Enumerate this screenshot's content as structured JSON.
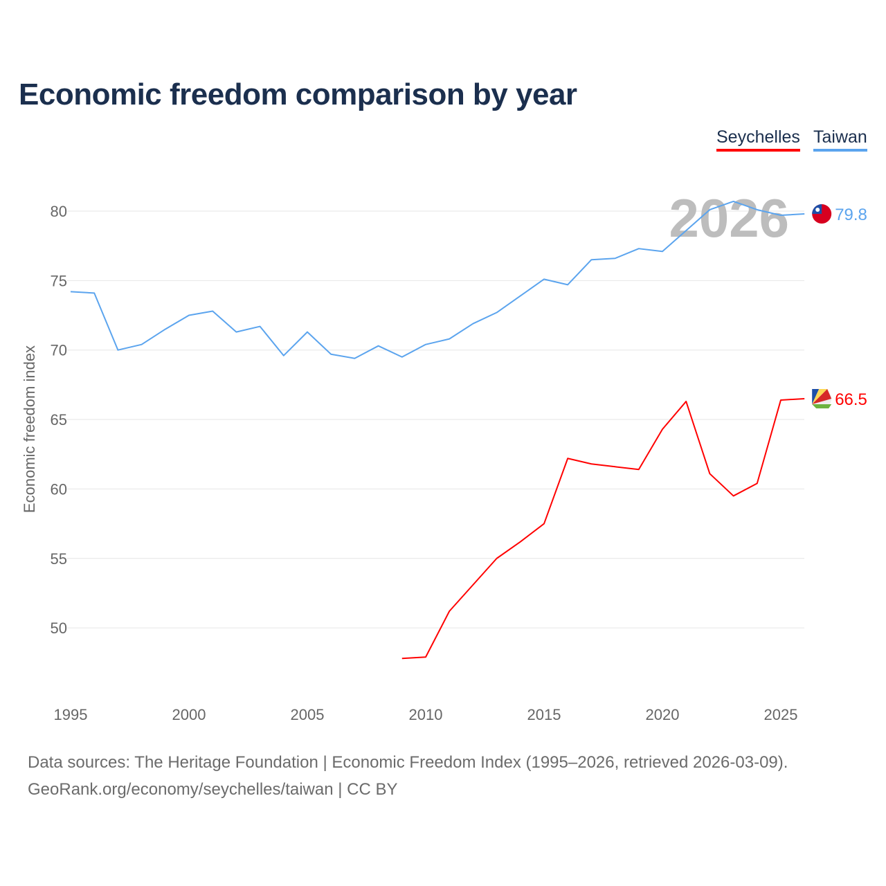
{
  "chart_data": {
    "type": "line",
    "title": "Economic freedom comparison by year",
    "ylabel": "Economic freedom index",
    "xlabel": "",
    "xlim": [
      1995,
      2026
    ],
    "ylim": [
      45,
      82
    ],
    "xticks": [
      "1995",
      "2000",
      "2005",
      "2010",
      "2015",
      "2020",
      "2025"
    ],
    "yticks": [
      "50",
      "55",
      "60",
      "65",
      "70",
      "75",
      "80"
    ],
    "grid": true,
    "legend_position": "top-right",
    "year_watermark": "2026",
    "series": [
      {
        "name": "Seychelles",
        "color": "#ff0000",
        "end_label": "66.5",
        "x": [
          2009,
          2010,
          2011,
          2012,
          2013,
          2014,
          2015,
          2016,
          2017,
          2018,
          2019,
          2020,
          2021,
          2022,
          2023,
          2024,
          2025,
          2026
        ],
        "values": [
          47.8,
          47.9,
          51.2,
          53.1,
          55.0,
          56.2,
          57.5,
          62.2,
          61.8,
          61.6,
          61.4,
          64.3,
          66.3,
          61.1,
          59.5,
          60.4,
          66.4,
          66.5
        ]
      },
      {
        "name": "Taiwan",
        "color": "#5ba4ee",
        "end_label": "79.8",
        "x": [
          1995,
          1996,
          1997,
          1998,
          1999,
          2000,
          2001,
          2002,
          2003,
          2004,
          2005,
          2006,
          2007,
          2008,
          2009,
          2010,
          2011,
          2012,
          2013,
          2014,
          2015,
          2016,
          2017,
          2018,
          2019,
          2020,
          2021,
          2022,
          2023,
          2024,
          2025,
          2026
        ],
        "values": [
          74.2,
          74.1,
          70.0,
          70.4,
          71.5,
          72.5,
          72.8,
          71.3,
          71.7,
          69.6,
          71.3,
          69.7,
          69.4,
          70.3,
          69.5,
          70.4,
          70.8,
          71.9,
          72.7,
          73.9,
          75.1,
          74.7,
          76.5,
          76.6,
          77.3,
          77.1,
          78.6,
          80.1,
          80.7,
          80.1,
          79.7,
          79.8
        ]
      }
    ]
  },
  "footer": {
    "line1": "Data sources: The Heritage Foundation | Economic Freedom Index (1995–2026, retrieved 2026-03-09).",
    "line2": "GeoRank.org/economy/seychelles/taiwan | CC BY"
  }
}
